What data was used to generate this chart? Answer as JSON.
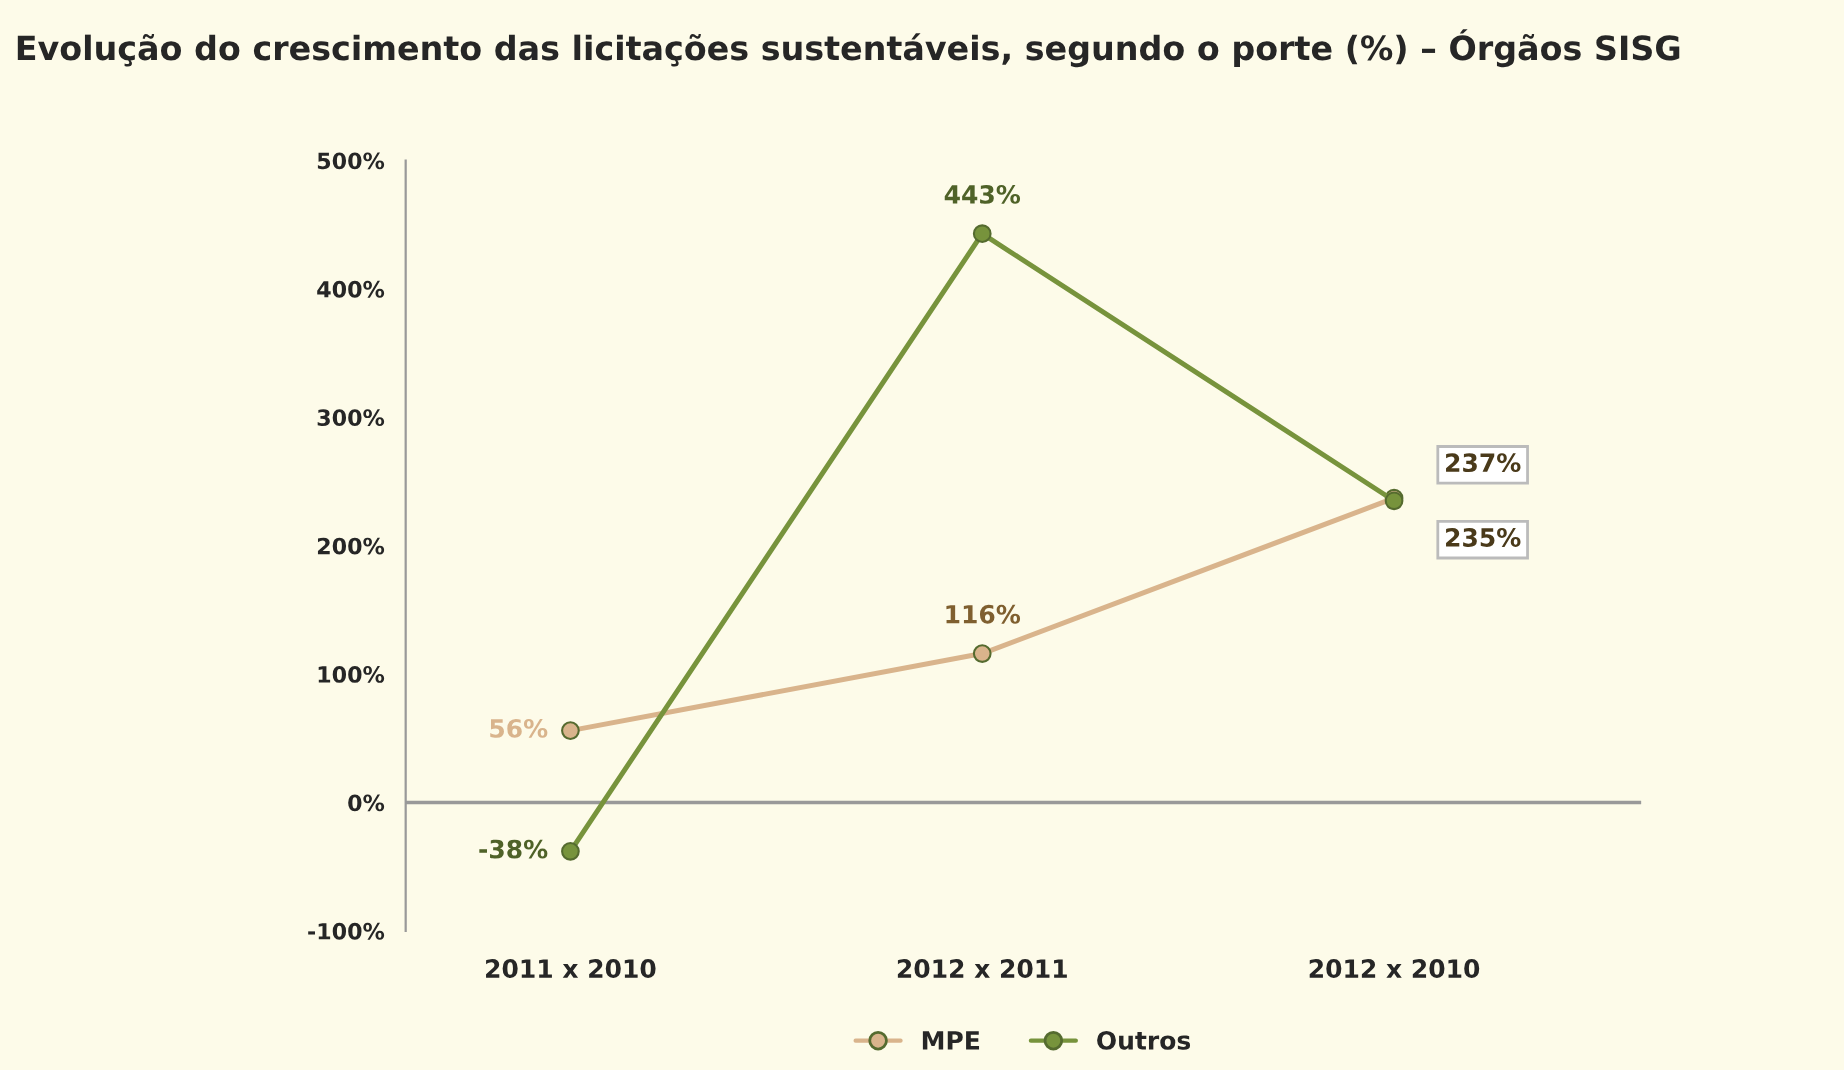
{
  "chart_data": {
    "type": "line",
    "title": "Evolução do crescimento das licitações sustentáveis, segundo o porte (%) – Órgãos SISG",
    "categories": [
      "2011 x 2010",
      "2012 x 2011",
      "2012 x 2010"
    ],
    "series": [
      {
        "name": "MPE",
        "color": "#d9b48c",
        "values": [
          56,
          116,
          237
        ],
        "value_labels": [
          "56%",
          "116%",
          "237%"
        ]
      },
      {
        "name": "Outros",
        "color": "#77933c",
        "values": [
          -38,
          443,
          235
        ],
        "value_labels": [
          "-38%",
          "443%",
          "235%"
        ]
      }
    ],
    "ylim": [
      -100,
      500
    ],
    "yticks": [
      {
        "value": -100,
        "label": "-100%"
      },
      {
        "value": 0,
        "label": "0%"
      },
      {
        "value": 100,
        "label": "100%"
      },
      {
        "value": 200,
        "label": "200%"
      },
      {
        "value": 300,
        "label": "300%"
      },
      {
        "value": 400,
        "label": "400%"
      },
      {
        "value": 500,
        "label": "500%"
      }
    ],
    "ref_lines": [
      {
        "axis": "y",
        "value": 0,
        "color": "#999999"
      }
    ],
    "grid": false,
    "legend": "bottom",
    "marker": "circle",
    "line_style": "solid"
  }
}
